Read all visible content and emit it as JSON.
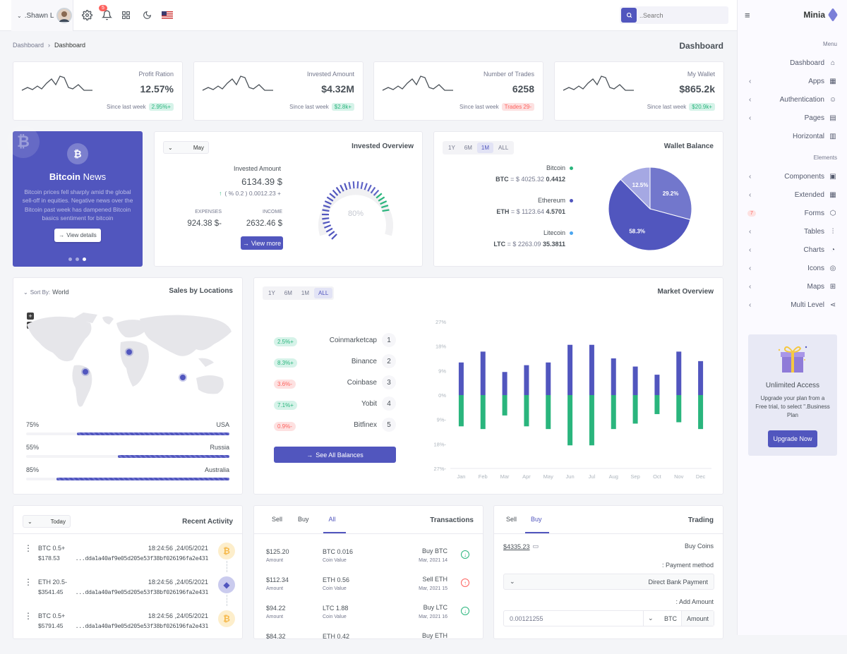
{
  "topbar": {
    "user_name": ".Shawn L",
    "notification_count": "5",
    "search_placeholder": "..Search"
  },
  "breadcrumb": {
    "root": "Dashboard",
    "current": "Dashboard"
  },
  "page_title": "Dashboard",
  "stats": [
    {
      "title": "Profit Ration",
      "value": "12.57%",
      "since": "Since last week",
      "badge": "2.95%+",
      "badge_type": "success"
    },
    {
      "title": "Invested Amount",
      "value": "$4.32M",
      "since": "Since last week",
      "badge": "$2.8k+",
      "badge_type": "success"
    },
    {
      "title": "Number of Trades",
      "value": "6258",
      "since": "Since last week",
      "badge": "Trades 29-",
      "badge_type": "danger"
    },
    {
      "title": "My Wallet",
      "value": "$865.2k",
      "since": "Since last week",
      "badge": "$20.9k+",
      "badge_type": "success"
    }
  ],
  "bitcoin_news": {
    "title_bold": "Bitcoin",
    "title_rest": " News",
    "text": "Bitcoin prices fell sharply amid the global sell-off in equities. Negative news over the Bitcoin past week has dampened Bitcoin basics sentiment for bitcoin",
    "button": "View details"
  },
  "invested_overview": {
    "title": "Invested Overview",
    "select": "May",
    "label": "Invested Amount",
    "amount": "6134.39 $",
    "change": "( % 0.2 ) 0.0012.23 +",
    "expenses_label": "EXPENSES",
    "expenses_value": "924.38 $-",
    "income_label": "INCOME",
    "income_value": "2632.46 $",
    "button": "View more",
    "gauge_percent": "80%",
    "gauge_value": 80
  },
  "wallet_balance": {
    "title": "Wallet Balance",
    "tabs": [
      "1Y",
      "6M",
      "1M",
      "ALL"
    ],
    "active_tab": 2,
    "coins": [
      {
        "name": "Bitcoin",
        "line_pre": "BTC = $ ",
        "usd": "4025.32",
        "amount": "0.4412",
        "color": "#2ab57d"
      },
      {
        "name": "Ethereum",
        "line_pre": "ETH = $ ",
        "usd": "1123.64",
        "amount": "4.5701",
        "color": "#5156be"
      },
      {
        "name": "Litecoin",
        "line_pre": "LTC = $ ",
        "usd": "2263.09",
        "amount": "35.3811",
        "color": "#4ba6ef"
      }
    ],
    "pie": [
      {
        "label": "58.3%",
        "value": 58.3,
        "color": "#5156be"
      },
      {
        "label": "29.2%",
        "value": 29.2,
        "color": "#7277cc"
      },
      {
        "label": "12.5%",
        "value": 12.5,
        "color": "#a5a8e3"
      }
    ]
  },
  "sales_locations": {
    "title": "Sales by Locations",
    "sort_label": "Sort By:",
    "sort_value": "World",
    "rows": [
      {
        "percent": "75%",
        "country": "USA",
        "value": 75
      },
      {
        "percent": "55%",
        "country": "Russia",
        "value": 55
      },
      {
        "percent": "85%",
        "country": "Australia",
        "value": 85
      }
    ]
  },
  "market_overview": {
    "title": "Market Overview",
    "tabs": [
      "1Y",
      "6M",
      "1M",
      "ALL"
    ],
    "active_tab": 3,
    "exchanges": [
      {
        "badge": "2.5%+",
        "type": "success",
        "name": "Coinmarketcap",
        "rank": "1"
      },
      {
        "badge": "8.3%+",
        "type": "success",
        "name": "Binance",
        "rank": "2"
      },
      {
        "badge": "3.6%-",
        "type": "danger",
        "name": "Coinbase",
        "rank": "3"
      },
      {
        "badge": "7.1%+",
        "type": "success",
        "name": "Yobit",
        "rank": "4"
      },
      {
        "badge": "0.9%-",
        "type": "danger",
        "name": "Bitfinex",
        "rank": "5"
      }
    ],
    "button": "See All Balances"
  },
  "chart_data": {
    "type": "bar",
    "categories": [
      "Jan",
      "Feb",
      "Mar",
      "Apr",
      "May",
      "Jun",
      "Jul",
      "Aug",
      "Sep",
      "Oct",
      "Nov",
      "Dec"
    ],
    "yticks": [
      "27%",
      "18%",
      "9%",
      "0%",
      "9%-",
      "18%-",
      "27%-"
    ],
    "ylim": [
      -27,
      27
    ],
    "series": [
      {
        "values": [
          12,
          16,
          8.5,
          11,
          12,
          18.5,
          18.5,
          13.5,
          10.5,
          7.5,
          16,
          12.5
        ],
        "color": "#5156be"
      },
      {
        "values": [
          -11.5,
          -12.5,
          -7.5,
          -11.5,
          -12.5,
          -18.5,
          -18.5,
          -12.5,
          -10.5,
          -7,
          -10,
          -12.5
        ],
        "color": "#2ab57d"
      }
    ]
  },
  "recent_activity": {
    "title": "Recent Activity",
    "select": "Today",
    "items": [
      {
        "coin": "BTC 0.5+",
        "usd": "$178.53",
        "time": "18:24:56 ,24/05/2021",
        "hash": "...dda1a40af9e05d205e53f38bf026196fa2e431",
        "icon_color": "#f6b849",
        "icon_bg": "#fdeecb"
      },
      {
        "coin": "ETH 20.5-",
        "usd": "$3541.45",
        "time": "18:24:56 ,24/05/2021",
        "hash": "...dda1a40af9e05d205e53f38bf026196fa2e431",
        "icon_color": "#5156be",
        "icon_bg": "#cacbee"
      },
      {
        "coin": "BTC 0.5+",
        "usd": "$5791.45",
        "time": "18:24:56 ,24/05/2021",
        "hash": "...dda1a40af9e05d205e53f38bf026196fa2e431",
        "icon_color": "#f6b849",
        "icon_bg": "#fdeecb"
      }
    ]
  },
  "transactions": {
    "title": "Transactions",
    "tabs": [
      "Sell",
      "Buy",
      "All"
    ],
    "rows": [
      {
        "amount": "$125.20",
        "amount_label": "Amount",
        "coin": "BTC 0.016",
        "coin_label": "Coin Value",
        "action": "Buy BTC",
        "date": "Mar, 2021 14",
        "dir": "down"
      },
      {
        "amount": "$112.34",
        "amount_label": "Amount",
        "coin": "ETH 0.56",
        "coin_label": "Coin Value",
        "action": "Sell ETH",
        "date": "Mar, 2021 15",
        "dir": "up"
      },
      {
        "amount": "$94.22",
        "amount_label": "Amount",
        "coin": "LTC 1.88",
        "coin_label": "Coin Value",
        "action": "Buy LTC",
        "date": "Mar, 2021 16",
        "dir": "down"
      },
      {
        "amount": "$84.32",
        "amount_label": "",
        "coin": "ETH 0.42",
        "coin_label": "",
        "action": "Buy ETH",
        "date": "",
        "dir": ""
      }
    ]
  },
  "trading": {
    "title": "Trading",
    "tabs": [
      "Sell",
      "Buy"
    ],
    "balance": "$4335.23",
    "buy_coins": "Buy Coins",
    "payment_label": ": Payment method",
    "payment_value": "Direct Bank Payment",
    "amount_label": ": Add Amount",
    "amount_value": "0.00121255",
    "currency": "BTC",
    "amount_addon": "Amount"
  },
  "sidebar": {
    "brand": "Minia",
    "menu_title": "Menu",
    "elements_title": "Elements",
    "menu_items": [
      {
        "label": "Dashboard",
        "icon": "home-icon",
        "chevron": false
      },
      {
        "label": "Apps",
        "icon": "grid-icon",
        "chevron": true
      },
      {
        "label": "Authentication",
        "icon": "users-icon",
        "chevron": true
      },
      {
        "label": "Pages",
        "icon": "file-icon",
        "chevron": true
      },
      {
        "label": "Horizontal",
        "icon": "layout-icon",
        "chevron": false
      }
    ],
    "element_items": [
      {
        "label": "Components",
        "icon": "briefcase-icon",
        "chevron": true,
        "badge": ""
      },
      {
        "label": "Extended",
        "icon": "gift-icon",
        "chevron": true,
        "badge": ""
      },
      {
        "label": "Forms",
        "icon": "box-icon",
        "chevron": false,
        "badge": "7"
      },
      {
        "label": "Tables",
        "icon": "sliders-icon",
        "chevron": true,
        "badge": ""
      },
      {
        "label": "Charts",
        "icon": "pie-chart-icon",
        "chevron": true,
        "badge": ""
      },
      {
        "label": "Icons",
        "icon": "award-icon",
        "chevron": true,
        "badge": ""
      },
      {
        "label": "Maps",
        "icon": "map-icon",
        "chevron": true,
        "badge": ""
      },
      {
        "label": "Multi Level",
        "icon": "share-icon",
        "chevron": true,
        "badge": ""
      }
    ],
    "promo_title": "Unlimited Access",
    "promo_text": "Upgrade your plan from a Free trial, to select \".Business Plan",
    "promo_button": "Upgrade Now"
  }
}
